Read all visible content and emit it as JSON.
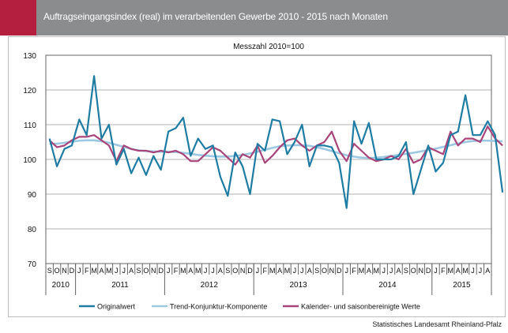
{
  "header": {
    "title": "Auftragseingangsindex (real) im verarbeitenden Gewerbe 2010 - 2015 nach Monaten"
  },
  "source": "Statistisches Landesamt Rheinland-Pfalz",
  "colors": {
    "header_bg": "#8a8c8e",
    "header_accent": "#b51f3f",
    "original": "#1f7ca3",
    "trend": "#9cc9e1",
    "seasonal": "#a8457a"
  },
  "chart_data": {
    "type": "line",
    "title": "Messzahl 2010=100",
    "ylim": [
      70,
      130
    ],
    "yticks": [
      "130",
      "120",
      "110",
      "100",
      "90",
      "80",
      "70"
    ],
    "month_labels": [
      "S",
      "O",
      "N",
      "D",
      "J",
      "F",
      "M",
      "A",
      "M",
      "J",
      "J",
      "A",
      "S",
      "O",
      "N",
      "D",
      "J",
      "F",
      "M",
      "A",
      "M",
      "J",
      "J",
      "A",
      "S",
      "O",
      "N",
      "D",
      "J",
      "F",
      "M",
      "A",
      "M",
      "J",
      "J",
      "A",
      "S",
      "O",
      "N",
      "D",
      "J",
      "F",
      "M",
      "A",
      "M",
      "J",
      "J",
      "A",
      "S",
      "O",
      "N",
      "D",
      "J",
      "F",
      "M",
      "A",
      "M",
      "J",
      "J",
      "A"
    ],
    "years": [
      {
        "label": "2010",
        "start": 0,
        "count": 4
      },
      {
        "label": "2011",
        "start": 4,
        "count": 12
      },
      {
        "label": "2012",
        "start": 16,
        "count": 12
      },
      {
        "label": "2013",
        "start": 28,
        "count": 12
      },
      {
        "label": "2014",
        "start": 40,
        "count": 12
      },
      {
        "label": "2015",
        "start": 52,
        "count": 8
      }
    ],
    "grid": true,
    "legend": "bottom",
    "series": [
      {
        "name": "Originalwert",
        "color": "#1f7ca3",
        "values": [
          106,
          98,
          103,
          104,
          111.5,
          107,
          124,
          106,
          110,
          98.5,
          103,
          96,
          100.5,
          95.5,
          101,
          97,
          108,
          109,
          112,
          101,
          106,
          103,
          104,
          95,
          89.5,
          102,
          98,
          90,
          104.5,
          102.5,
          111.5,
          111,
          101.5,
          105,
          110,
          98,
          104,
          104,
          103.5,
          99,
          86,
          111,
          104.5,
          110.5,
          100,
          100,
          100,
          101,
          105,
          90,
          97,
          104,
          96.5,
          99,
          107,
          108,
          118.5,
          107,
          107,
          111,
          107,
          90.5
        ]
      },
      {
        "name": "Trend-Konjunktur-Komponente",
        "color": "#9cc9e1",
        "values": [
          104.5,
          104.5,
          104.8,
          105.1,
          105.4,
          105.5,
          105.5,
          105.2,
          104.8,
          104.2,
          103.6,
          103.0,
          102.6,
          102.4,
          102.3,
          102.2,
          102.2,
          102.1,
          101.9,
          101.6,
          101.3,
          101.1,
          100.9,
          100.8,
          100.8,
          101.0,
          101.3,
          101.7,
          102.2,
          102.8,
          103.3,
          103.8,
          104.0,
          104.1,
          104.1,
          103.9,
          103.5,
          103.0,
          102.4,
          101.8,
          101.2,
          100.8,
          100.5,
          100.4,
          100.5,
          100.7,
          101.0,
          101.3,
          101.6,
          101.9,
          102.3,
          102.7,
          103.1,
          103.6,
          104.1,
          104.6,
          105.0,
          105.3,
          105.4,
          105.4,
          105.3,
          105.2
        ]
      },
      {
        "name": "Kalender- und saisonbereinigte Werte",
        "color": "#a8457a",
        "values": [
          105.5,
          103.5,
          104,
          105.5,
          106.5,
          106.5,
          107,
          105.5,
          104,
          99.5,
          104,
          103,
          102.5,
          102.5,
          102,
          102.5,
          102,
          102.5,
          101.5,
          99.5,
          99.5,
          101.5,
          103.5,
          102.5,
          100.5,
          98.5,
          101.5,
          100.5,
          104,
          99,
          101,
          103.5,
          105.5,
          106,
          104,
          102.5,
          104,
          105,
          108,
          102.5,
          99.5,
          104.5,
          102.5,
          100.5,
          99.5,
          100,
          101,
          100,
          103,
          99,
          100,
          103.5,
          102.5,
          101.5,
          108,
          104,
          106,
          106,
          105,
          109.5,
          106,
          104
        ]
      }
    ]
  }
}
